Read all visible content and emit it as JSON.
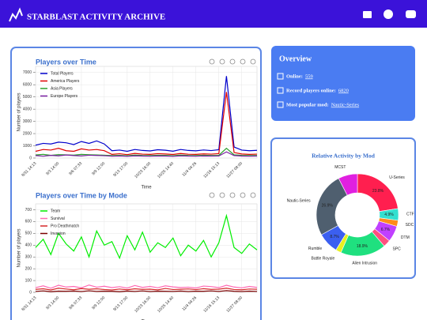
{
  "header": {
    "title": "STARBLAST ACTIVITY ARCHIVE"
  },
  "overview": {
    "title": "Overview",
    "items": [
      {
        "label": "Online:",
        "value": 559
      },
      {
        "label": "Record players online:",
        "value": 6820
      },
      {
        "label": "Most popular mod:",
        "value": "Nautic-Series"
      }
    ]
  },
  "chart_data": [
    {
      "type": "line",
      "title": "Players over Time",
      "xlabel": "Time",
      "ylabel": "Number of players",
      "categories": [
        "8/31 14:13",
        null,
        null,
        "9/3 14:00",
        null,
        null,
        "9/6 07:33",
        null,
        null,
        "9/9 12:00",
        null,
        null,
        "9/13 17:00",
        null,
        null,
        "10/23 16:00",
        null,
        null,
        "10/25 14:40",
        null,
        null,
        "11/4 04:26",
        null,
        null,
        "11/16 15:13",
        null,
        null,
        "11/27 08:00",
        null,
        null
      ],
      "ylim": [
        0,
        7500
      ],
      "yticks": [
        0,
        1000,
        2000,
        3000,
        4000,
        5000,
        6000,
        7000
      ],
      "grid": true,
      "legend": "upper left",
      "series": [
        {
          "name": "Total Players",
          "color": "#0000cc",
          "values": [
            1050,
            1200,
            1150,
            1300,
            1250,
            1100,
            1350,
            1200,
            1400,
            1150,
            600,
            650,
            550,
            700,
            620,
            580,
            680,
            640,
            560,
            700,
            620,
            590,
            660,
            610,
            680,
            6700,
            900,
            650,
            600,
            630
          ]
        },
        {
          "name": "America Players",
          "color": "#e00000",
          "values": [
            550,
            700,
            650,
            800,
            600,
            550,
            750,
            650,
            700,
            600,
            300,
            350,
            280,
            380,
            320,
            300,
            360,
            330,
            290,
            370,
            310,
            300,
            340,
            320,
            360,
            5400,
            450,
            330,
            300,
            320
          ]
        },
        {
          "name": "Asia Players",
          "color": "#2ca02c",
          "values": [
            250,
            300,
            220,
            280,
            260,
            240,
            300,
            270,
            250,
            230,
            200,
            220,
            190,
            240,
            210,
            200,
            230,
            220,
            190,
            240,
            210,
            200,
            230,
            210,
            220,
            800,
            260,
            220,
            200,
            210
          ]
        },
        {
          "name": "Europe Players",
          "color": "#7b1fa2",
          "values": [
            200,
            150,
            220,
            180,
            250,
            200,
            170,
            230,
            210,
            190,
            150,
            170,
            140,
            180,
            160,
            150,
            170,
            160,
            140,
            180,
            160,
            150,
            170,
            160,
            170,
            500,
            200,
            160,
            150,
            160
          ]
        }
      ]
    },
    {
      "type": "line",
      "title": "Players over Time by Mode",
      "xlabel": "Time",
      "ylabel": "Number of players",
      "categories": [
        "8/31 14:13",
        null,
        null,
        "9/3 14:00",
        null,
        null,
        "9/6 07:33",
        null,
        null,
        "9/9 12:00",
        null,
        null,
        "9/13 17:00",
        null,
        null,
        "10/23 16:00",
        null,
        null,
        "10/25 14:40",
        null,
        null,
        "11/4 04:26",
        null,
        null,
        "11/16 15:13",
        null,
        null,
        "11/27 08:00",
        null,
        null
      ],
      "ylim": [
        0,
        750
      ],
      "yticks": [
        0,
        100,
        200,
        300,
        400,
        500,
        600,
        700
      ],
      "grid": true,
      "legend": "upper left",
      "series": [
        {
          "name": "Team",
          "color": "#00ee00",
          "values": [
            380,
            450,
            320,
            500,
            410,
            350,
            470,
            300,
            520,
            400,
            430,
            290,
            480,
            360,
            510,
            340,
            420,
            380,
            460,
            310,
            400,
            350,
            440,
            300,
            420,
            650,
            380,
            330,
            410,
            360
          ]
        },
        {
          "name": "Survival",
          "color": "#ff69b4",
          "values": [
            40,
            55,
            35,
            60,
            45,
            50,
            38,
            62,
            44,
            52,
            40,
            48,
            36,
            58,
            42,
            50,
            39,
            55,
            46,
            41,
            44,
            37,
            53,
            49,
            40,
            60,
            45,
            38,
            50,
            42
          ]
        },
        {
          "name": "Pro Deathmatch",
          "color": "#d62728",
          "values": [
            25,
            30,
            20,
            35,
            28,
            22,
            32,
            26,
            30,
            24,
            20,
            28,
            22,
            30,
            25,
            27,
            21,
            33,
            24,
            26,
            29,
            23,
            31,
            25,
            27,
            35,
            24,
            22,
            28,
            26
          ]
        },
        {
          "name": "Invasion",
          "color": "#7b0000",
          "values": [
            8,
            12,
            6,
            10,
            9,
            11,
            7,
            13,
            8,
            10,
            9,
            6,
            11,
            8,
            12,
            7,
            10,
            9,
            8,
            11,
            7,
            10,
            9,
            12,
            8,
            14,
            9,
            7,
            10,
            8
          ]
        }
      ]
    },
    {
      "type": "pie",
      "donut": true,
      "title": "Relative Activity by Mod",
      "categories": [
        "U-Series",
        "CTF",
        "SDC",
        "DTM",
        "SPC",
        "Alien Intrusion",
        "Battle Royale",
        "Rumble",
        "Nautic-Series",
        "MCST"
      ],
      "values": [
        23.8,
        4.9,
        2.5,
        6.7,
        3.0,
        18.9,
        2.3,
        8.7,
        26.9,
        8.0
      ],
      "value_labels": [
        "23.8%",
        "4.9%",
        null,
        "6.7%",
        null,
        "18.9%",
        null,
        "8.7%",
        "26.9%",
        null
      ],
      "colors": [
        "#ff1f4f",
        "#33e0d0",
        "#ff8c1a",
        "#c040ff",
        "#ff4f7f",
        "#1fe07f",
        "#e8f020",
        "#3b5ff0",
        "#4f5f6f",
        "#e020e0"
      ]
    }
  ]
}
